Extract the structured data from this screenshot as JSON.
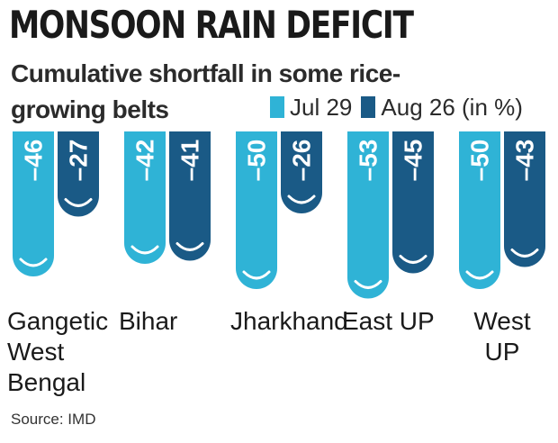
{
  "title": "MONSOON RAIN DEFICIT",
  "subtitle": "Cumulative shortfall in some rice-growing belts",
  "source": "Source: IMD",
  "colors": {
    "jul": "#2fb3d6",
    "aug": "#1a5a86",
    "text": "#1a1a1a",
    "drop": "#ffffff"
  },
  "chart_data": {
    "type": "bar",
    "categories": [
      "Gangetic West Bengal",
      "Bihar",
      "Jharkhand",
      "East UP",
      "West UP"
    ],
    "category_lines": [
      [
        "Gangetic",
        "West",
        "Bengal"
      ],
      [
        "Bihar"
      ],
      [
        "Jharkhand"
      ],
      [
        "East UP"
      ],
      [
        "West",
        "UP"
      ]
    ],
    "series": [
      {
        "name": "Jul 29",
        "values": [
          -46,
          -42,
          -50,
          -53,
          -50
        ]
      },
      {
        "name": "Aug 26 (in %)",
        "values": [
          -27,
          -41,
          -26,
          -45,
          -43
        ]
      }
    ],
    "value_labels": [
      [
        "–46",
        "–42",
        "–50",
        "–53",
        "–50"
      ],
      [
        "–27",
        "–41",
        "–26",
        "–45",
        "–43"
      ]
    ],
    "ylim": [
      -55,
      0
    ],
    "xlabel": "",
    "ylabel": "",
    "legend_position": "top-right",
    "grid": false
  }
}
